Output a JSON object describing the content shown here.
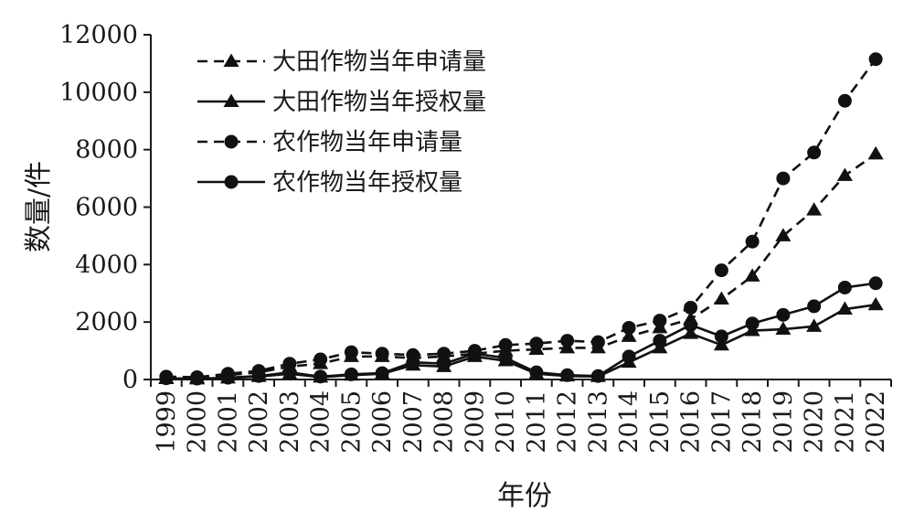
{
  "chart_data": {
    "type": "line",
    "xlabel": "年份",
    "ylabel": "数量/件",
    "ylim": [
      0,
      12000
    ],
    "yticks": [
      0,
      2000,
      4000,
      6000,
      8000,
      10000,
      12000
    ],
    "ytick_labels": [
      "0",
      "2000",
      "4000",
      "6000",
      "8000",
      "10000",
      "12000"
    ],
    "x": [
      "1999",
      "2000",
      "2001",
      "2002",
      "2003",
      "2004",
      "2005",
      "2006",
      "2007",
      "2008",
      "2009",
      "2010",
      "2011",
      "2012",
      "2013",
      "2014",
      "2015",
      "2016",
      "2017",
      "2018",
      "2019",
      "2020",
      "2021",
      "2022"
    ],
    "legend_position": "top-left",
    "grid": false,
    "series": [
      {
        "name": "大田作物当年申请量",
        "line_style": "dashed",
        "marker": "triangle",
        "values": [
          50,
          60,
          150,
          250,
          450,
          550,
          800,
          800,
          750,
          800,
          900,
          1000,
          1050,
          1100,
          1100,
          1500,
          1800,
          2100,
          2800,
          3600,
          5000,
          5900,
          7100,
          7850
        ]
      },
      {
        "name": "大田作物当年授权量",
        "line_style": "solid",
        "marker": "triangle",
        "values": [
          30,
          20,
          50,
          100,
          200,
          80,
          150,
          200,
          500,
          450,
          800,
          650,
          200,
          120,
          100,
          600,
          1100,
          1600,
          1200,
          1700,
          1750,
          1850,
          2450,
          2600
        ]
      },
      {
        "name": "农作物当年申请量",
        "line_style": "dashed",
        "marker": "circle",
        "values": [
          100,
          80,
          200,
          300,
          550,
          700,
          950,
          900,
          850,
          900,
          1000,
          1200,
          1250,
          1350,
          1300,
          1800,
          2050,
          2500,
          3800,
          4800,
          7000,
          7900,
          9700,
          11150
        ]
      },
      {
        "name": "农作物当年授权量",
        "line_style": "solid",
        "marker": "circle",
        "values": [
          40,
          30,
          60,
          120,
          250,
          100,
          180,
          220,
          600,
          550,
          900,
          750,
          250,
          150,
          120,
          800,
          1350,
          1900,
          1500,
          1950,
          2250,
          2550,
          3200,
          3350
        ]
      }
    ]
  }
}
